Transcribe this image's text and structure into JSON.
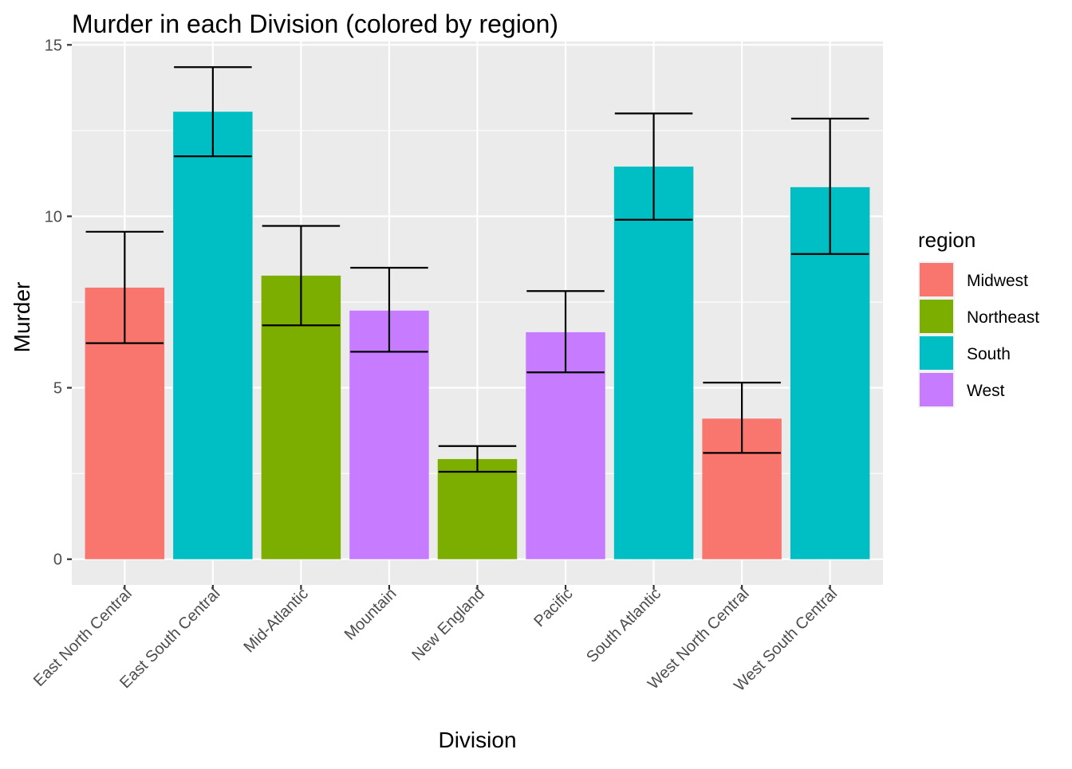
{
  "chart_data": {
    "type": "bar",
    "title": "Murder in each Division (colored by region)",
    "xlabel": "Division",
    "ylabel": "Murder",
    "ylim": [
      -0.75,
      15.1
    ],
    "yticks": [
      0,
      5,
      10,
      15
    ],
    "grid": true,
    "legend": {
      "title": "region",
      "placement": "right",
      "entries": [
        {
          "name": "Midwest",
          "color": "#F8766D"
        },
        {
          "name": "Northeast",
          "color": "#7CAE00"
        },
        {
          "name": "South",
          "color": "#00BFC4"
        },
        {
          "name": "West",
          "color": "#C77CFF"
        }
      ]
    },
    "bars": [
      {
        "category": "East North Central",
        "region": "Midwest",
        "value": 7.92,
        "err_low": 6.3,
        "err_high": 9.55
      },
      {
        "category": "East South Central",
        "region": "South",
        "value": 13.05,
        "err_low": 11.75,
        "err_high": 14.35
      },
      {
        "category": "Mid-Atlantic",
        "region": "Northeast",
        "value": 8.27,
        "err_low": 6.82,
        "err_high": 9.72
      },
      {
        "category": "Mountain",
        "region": "West",
        "value": 7.25,
        "err_low": 6.05,
        "err_high": 8.5
      },
      {
        "category": "New England",
        "region": "Northeast",
        "value": 2.92,
        "err_low": 2.55,
        "err_high": 3.3
      },
      {
        "category": "Pacific",
        "region": "West",
        "value": 6.62,
        "err_low": 5.45,
        "err_high": 7.82
      },
      {
        "category": "South Atlantic",
        "region": "South",
        "value": 11.45,
        "err_low": 9.9,
        "err_high": 13.0
      },
      {
        "category": "West North Central",
        "region": "Midwest",
        "value": 4.1,
        "err_low": 3.1,
        "err_high": 5.15
      },
      {
        "category": "West South Central",
        "region": "South",
        "value": 10.85,
        "err_low": 8.9,
        "err_high": 12.85
      }
    ]
  }
}
